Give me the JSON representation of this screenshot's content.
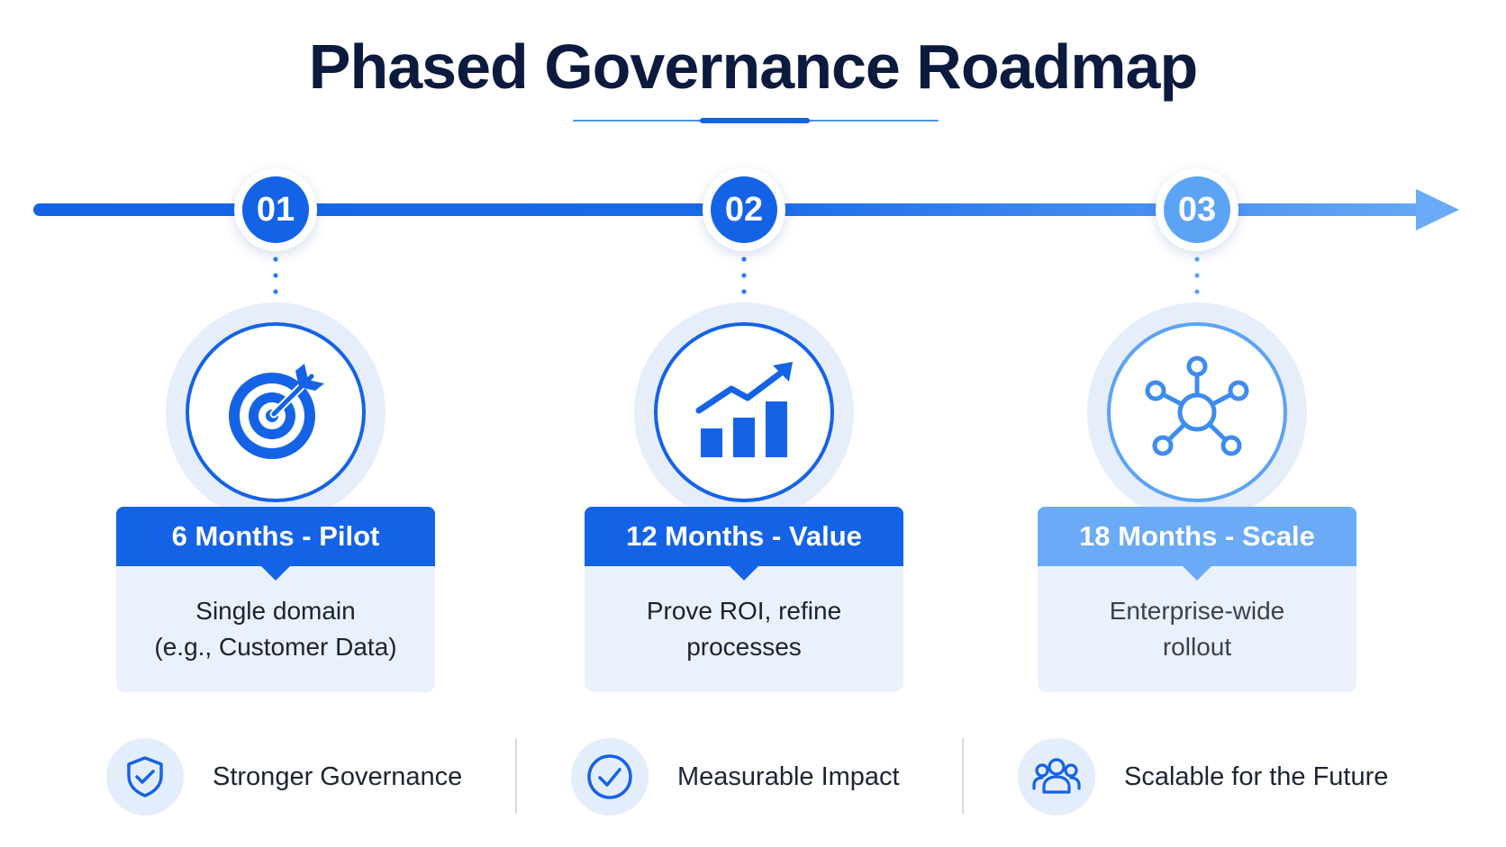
{
  "title": "Phased Governance Roadmap",
  "colors": {
    "navy": "#0b1a3e",
    "primary": "#1463e6",
    "light": "#5ba3f5",
    "card_bg": "#eaf1fc",
    "halo_bg": "#e6eefb"
  },
  "phases": [
    {
      "number": "01",
      "icon": "target-icon",
      "heading": "6 Months - Pilot",
      "body_lines": [
        "Single domain",
        "(e.g., Customer Data)"
      ]
    },
    {
      "number": "02",
      "icon": "growth-chart-icon",
      "heading": "12 Months - Value",
      "body_lines": [
        "Prove ROI, refine",
        "processes"
      ]
    },
    {
      "number": "03",
      "icon": "network-hub-icon",
      "heading": "18 Months - Scale",
      "body_lines": [
        "Enterprise-wide",
        "rollout"
      ]
    }
  ],
  "benefits": [
    {
      "icon": "shield-check-icon",
      "label": "Stronger Governance"
    },
    {
      "icon": "check-circle-icon",
      "label": "Measurable Impact"
    },
    {
      "icon": "users-group-icon",
      "label": "Scalable for the Future"
    }
  ]
}
